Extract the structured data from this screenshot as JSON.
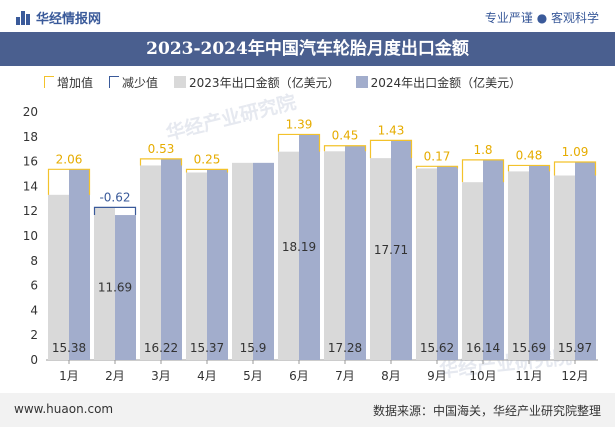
{
  "header": {
    "brand": "华经情报网",
    "tagline": "专业严谨 ● 客观科学"
  },
  "title": "2023-2024年中国汽车轮胎月度出口金额",
  "legend": {
    "increase": "增加值",
    "decrease": "减少值",
    "series1": "2023年出口金额（亿美元）",
    "series2": "2024年出口金额（亿美元）"
  },
  "watermark": "华经产业研究院",
  "footer": {
    "website": "www.huaon.com",
    "source": "数据来源：中国海关，华经产业研究院整理"
  },
  "colors": {
    "series1": "#d9d9d9",
    "series2": "#a2adcc",
    "increase": "#f3c22b",
    "decrease": "#3a5a9a",
    "title_bg": "#4a5f8f"
  },
  "chart_data": {
    "type": "bar",
    "categories": [
      "1月",
      "2月",
      "3月",
      "4月",
      "5月",
      "6月",
      "7月",
      "8月",
      "9月",
      "10月",
      "11月",
      "12月"
    ],
    "series": [
      {
        "name": "2023年出口金额（亿美元）",
        "values": [
          13.32,
          12.31,
          15.69,
          15.12,
          15.9,
          16.8,
          16.83,
          16.28,
          15.45,
          14.34,
          15.21,
          14.88
        ]
      },
      {
        "name": "2024年出口金额（亿美元）",
        "values": [
          15.38,
          11.69,
          16.22,
          15.37,
          15.9,
          18.19,
          17.28,
          17.71,
          15.62,
          16.14,
          15.69,
          15.97
        ]
      }
    ],
    "changes": [
      "2.06",
      "-0.62",
      "0.53",
      "0.25",
      "",
      "1.39",
      "0.45",
      "1.43",
      "0.17",
      "1.8",
      "0.48",
      "1.09"
    ],
    "ylim": [
      0,
      20
    ],
    "yticks": [
      0,
      2,
      4,
      6,
      8,
      10,
      12,
      14,
      16,
      18,
      20
    ],
    "grid": false,
    "legend_position": "top-left"
  }
}
